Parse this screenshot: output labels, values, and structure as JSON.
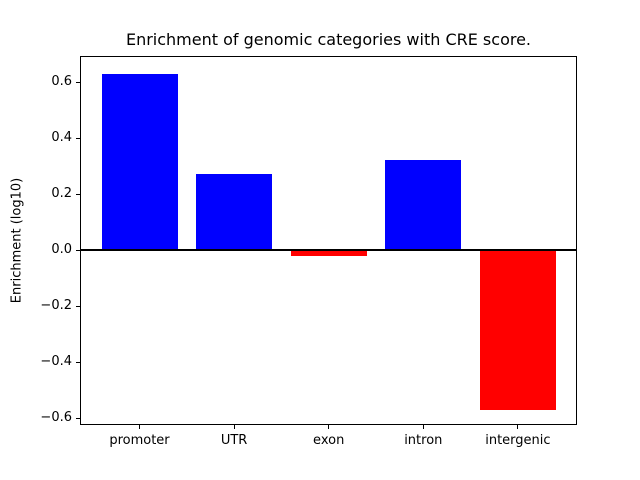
{
  "chart_data": {
    "type": "bar",
    "title": "Enrichment of genomic categories with CRE score.",
    "xlabel": "",
    "ylabel": "Enrichment (log10)",
    "categories": [
      "promoter",
      "UTR",
      "exon",
      "intron",
      "intergenic"
    ],
    "values": [
      0.63,
      0.27,
      -0.02,
      0.32,
      -0.57
    ],
    "bar_colors": [
      "#0000ff",
      "#0000ff",
      "#ff0000",
      "#0000ff",
      "#ff0000"
    ],
    "positive_color": "#0000ff",
    "negative_color": "#ff0000",
    "ylim": [
      -0.625,
      0.693
    ],
    "yticks": [
      0.6,
      0.4,
      0.2,
      0.0,
      -0.2,
      -0.4,
      -0.6
    ],
    "ytick_labels": [
      "0.6",
      "0.4",
      "0.2",
      "0.0",
      "−0.2",
      "−0.4",
      "−0.6"
    ],
    "zero_line": true,
    "grid": false,
    "legend": null,
    "background_color": "#ffffff",
    "axes_edge_color": "#000000"
  }
}
